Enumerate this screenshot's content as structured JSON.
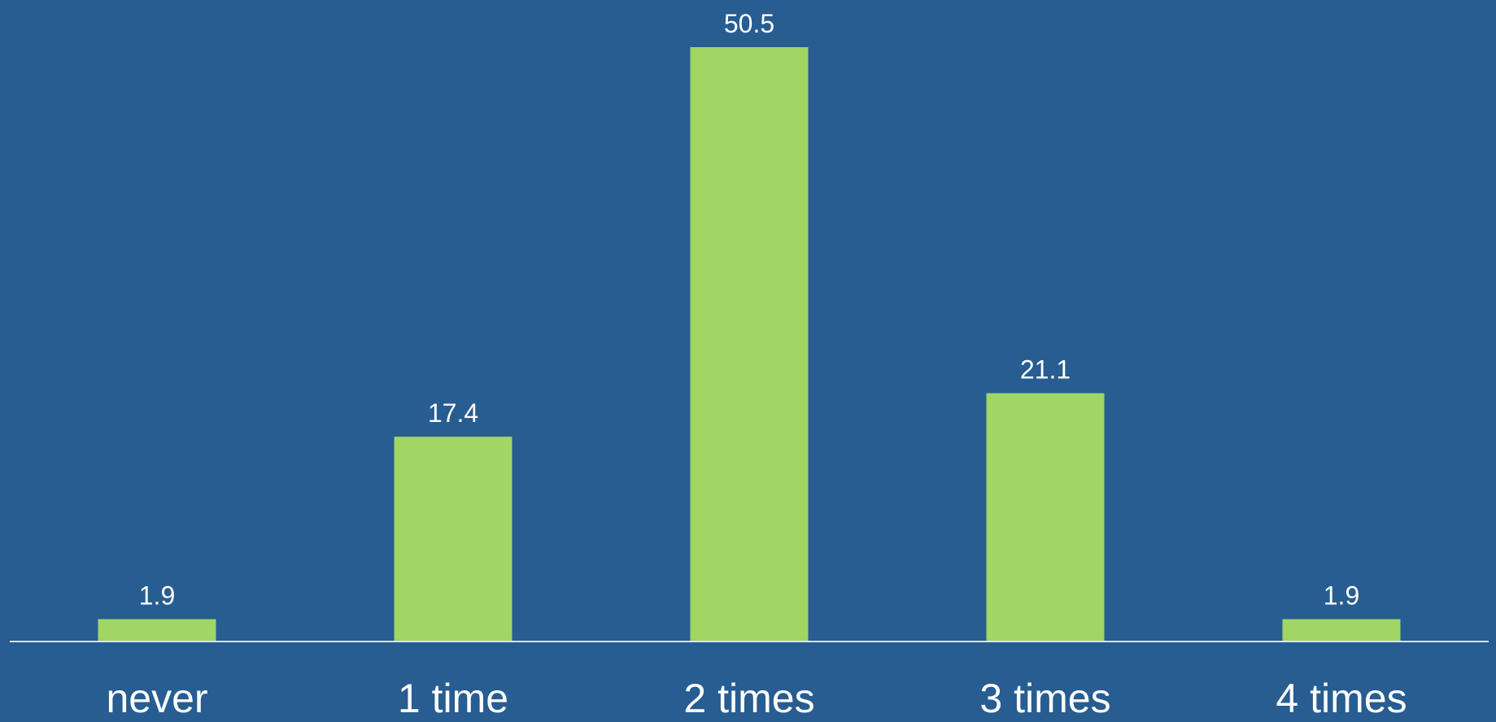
{
  "colors": {
    "background": "#275d91",
    "bar": "#a1d564",
    "axis": "#d8e2ee",
    "text": "#ffffff"
  },
  "chart_data": {
    "type": "bar",
    "categories": [
      "never",
      "1 time",
      "2 times",
      "3 times",
      "4 times"
    ],
    "values": [
      1.9,
      17.4,
      50.5,
      21.1,
      1.9
    ],
    "data_labels": [
      "1.9",
      "17.4",
      "50.5",
      "21.1",
      "1.9"
    ],
    "title": "",
    "xlabel": "",
    "ylabel": "",
    "ylim": [
      0,
      50.5
    ],
    "grid": false,
    "legend": "none"
  }
}
